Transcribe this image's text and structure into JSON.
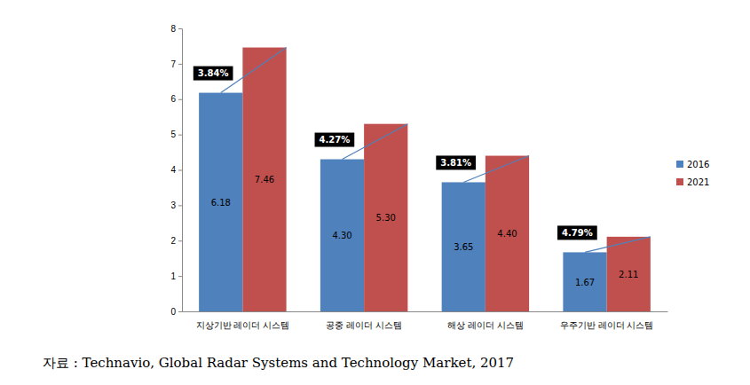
{
  "chart_data": {
    "type": "bar",
    "categories": [
      "지상기반 레이더 시스템",
      "공중 레이더 시스템",
      "해상 레이더 시스템",
      "우주기반 레이더 시스템"
    ],
    "series": [
      {
        "name": "2016",
        "color": "#4f81bd",
        "values": [
          6.18,
          4.3,
          3.65,
          1.67
        ],
        "value_labels": [
          "6.18",
          "4.30",
          "3.65",
          "1.67"
        ]
      },
      {
        "name": "2021",
        "color": "#c0504d",
        "values": [
          7.46,
          5.3,
          4.4,
          2.11
        ],
        "value_labels": [
          "7.46",
          "5.30",
          "4.40",
          "2.11"
        ]
      }
    ],
    "annotations": [
      "3.84%",
      "4.27%",
      "3.81%",
      "4.79%"
    ],
    "source": "자료 : Technavio, Global Radar Systems and Technology Market, 2017",
    "ylim": [
      0,
      8
    ],
    "yticks": [
      0,
      1,
      2,
      3,
      4,
      5,
      6,
      7,
      8
    ],
    "grid": false,
    "legend": "right",
    "data_labels": true
  }
}
